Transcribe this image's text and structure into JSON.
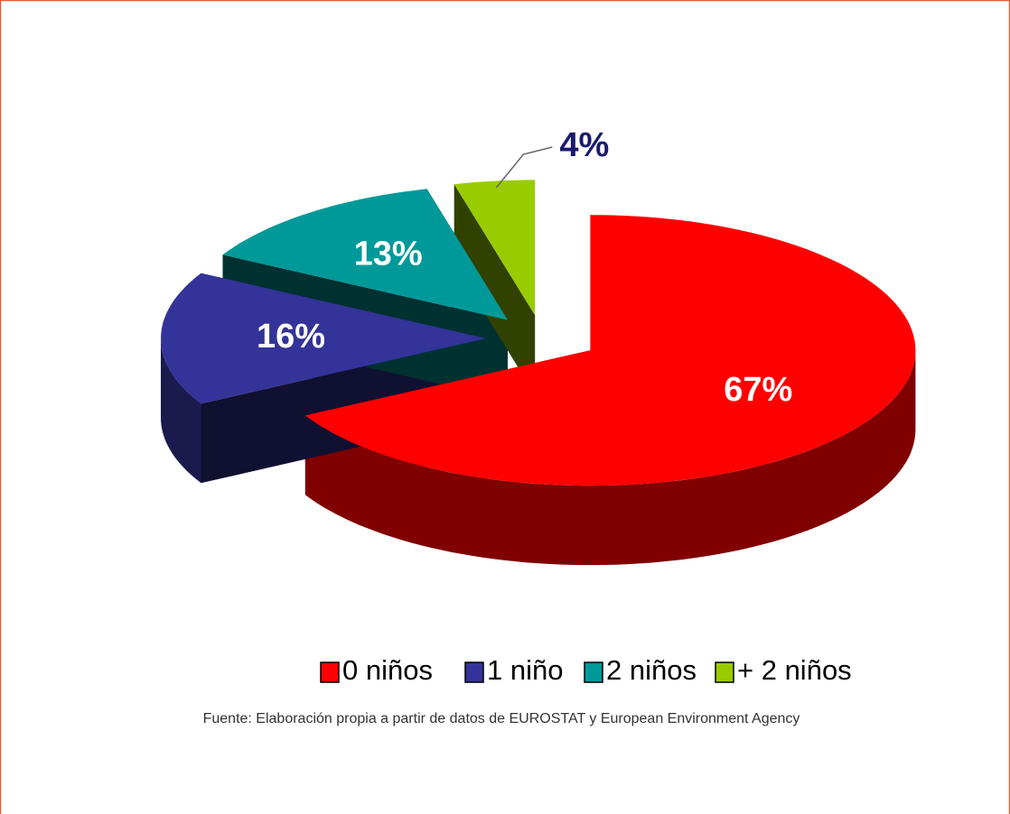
{
  "chart_data": {
    "type": "pie",
    "categories": [
      "0 niños",
      "1 niño",
      "2 niños",
      "+ 2 niños"
    ],
    "values": [
      67,
      16,
      13,
      4
    ],
    "value_labels": [
      "67%",
      "16%",
      "13%",
      "4%"
    ],
    "colors": [
      "#ff0000",
      "#333399",
      "#009999",
      "#99cc00"
    ],
    "legend": "bottom",
    "source": "Fuente: Elaboración propia a partir de datos de EUROSTAT y European Environment Agency"
  }
}
